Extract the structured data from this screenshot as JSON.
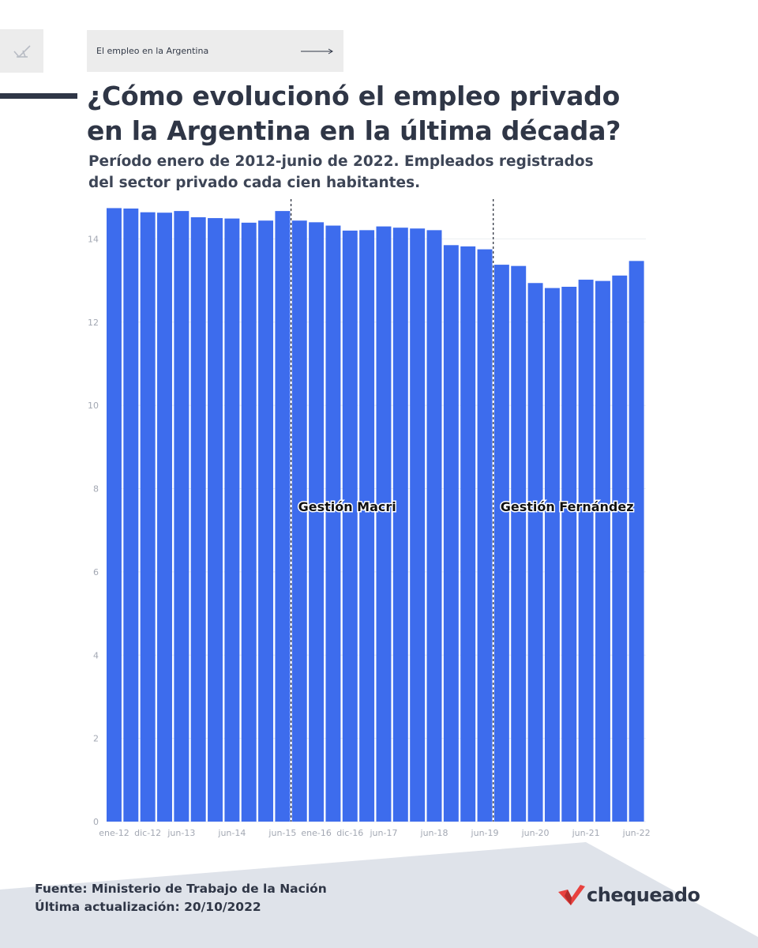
{
  "header": {
    "breadcrumb_label": "El empleo en la Argentina",
    "title_line1": "¿Cómo evolucionó el empleo privado",
    "title_line2": "en la Argentina en la última década?",
    "subtitle_line1": "Período enero de 2012-junio de 2022. Empleados registrados",
    "subtitle_line2": "del sector privado cada cien habitantes."
  },
  "footer": {
    "source": "Fuente: Ministerio de Trabajo de la Nación",
    "updated": "Última actualización: 20/10/2022",
    "brand": "chequeado"
  },
  "colors": {
    "bar": "#3d6ced",
    "text_dark": "#2f3646",
    "axis_text": "#a3a8b3",
    "footer_bg": "#dfe3ea",
    "brand_red": "#e8423f"
  },
  "chart_data": {
    "type": "bar",
    "x_ticks": [
      "ene-12",
      "dic-12",
      "jun-13",
      "jun-14",
      "jun-15",
      "ene-16",
      "dic-16",
      "jun-17",
      "jun-18",
      "jun-19",
      "jun-20",
      "jun-21",
      "jun-22"
    ],
    "x_tick_positions": [
      0,
      2,
      4,
      7,
      10,
      12,
      14,
      16,
      19,
      22,
      25,
      28,
      31
    ],
    "values": [
      14.74,
      14.73,
      14.64,
      14.63,
      14.67,
      14.52,
      14.5,
      14.49,
      14.39,
      14.44,
      14.67,
      14.44,
      14.4,
      14.32,
      14.2,
      14.21,
      14.3,
      14.27,
      14.25,
      14.21,
      13.85,
      13.82,
      13.75,
      13.38,
      13.35,
      12.94,
      12.82,
      12.85,
      13.02,
      12.99,
      13.12,
      13.47
    ],
    "y_ticks": [
      0,
      2,
      4,
      6,
      8,
      10,
      12,
      14
    ],
    "ylim": [
      0,
      14.9
    ],
    "annotations": [
      {
        "label": "Gestión Macri",
        "after_index": 10
      },
      {
        "label": "Gestión Fernández",
        "after_index": 22
      }
    ]
  }
}
